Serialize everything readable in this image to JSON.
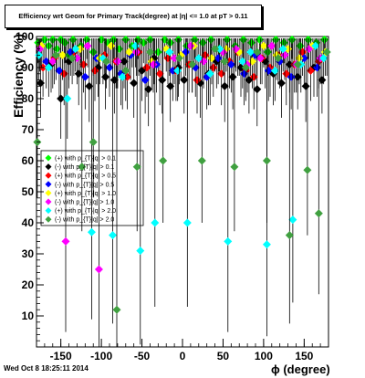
{
  "title": "Efficiency wrt Geom for Primary Track(degree) at |η| <= 1.0 at pT > 0.11",
  "footer": "Wed Oct  8 18:25:11 2014",
  "chart_data": {
    "type": "scatter",
    "xlabel": "ϕ (degree)",
    "ylabel": "Efficiency (%)",
    "xlim": [
      -180,
      180
    ],
    "ylim": [
      0,
      100
    ],
    "xticks": [
      -150,
      -100,
      -50,
      0,
      50,
      100,
      150
    ],
    "yticks": [
      0,
      10,
      20,
      30,
      40,
      50,
      60,
      70,
      80,
      90,
      100
    ],
    "grid": false,
    "legend_position": "center-left",
    "series": [
      {
        "name": "(+) with p_{T}|q| > 0.1",
        "color": "#00ff00",
        "x": [
          -178,
          -170,
          -165,
          -160,
          -155,
          -150,
          -145,
          -140,
          -135,
          -125,
          -118,
          -110,
          -100,
          -92,
          -85,
          -78,
          -70,
          -62,
          -55,
          -48,
          -40,
          -30,
          -22,
          -15,
          -5,
          5,
          15,
          25,
          35,
          45,
          55,
          65,
          75,
          85,
          95,
          105,
          115,
          125,
          135,
          145,
          155,
          165,
          175
        ],
        "y": [
          98,
          99,
          97,
          99,
          96,
          99,
          98,
          94,
          99,
          97,
          99,
          95,
          99,
          98,
          99,
          96,
          99,
          97,
          99,
          98,
          99,
          95,
          99,
          98,
          99,
          97,
          99,
          98,
          99,
          96,
          99,
          97,
          99,
          98,
          99,
          95,
          99,
          98,
          99,
          97,
          99,
          98,
          99
        ]
      },
      {
        "name": "(-) with p_{T}|q| > 0.1",
        "color": "#000000",
        "x": [
          -175,
          -162,
          -150,
          -140,
          -128,
          -115,
          -104,
          -95,
          -84,
          -72,
          -60,
          -50,
          -42,
          -35,
          -25,
          -15,
          -5,
          2,
          12,
          22,
          32,
          42,
          52,
          62,
          72,
          82,
          92,
          102,
          112,
          122,
          132,
          142,
          152,
          162,
          172
        ],
        "y": [
          85,
          91,
          80,
          92,
          88,
          84,
          90,
          87,
          86,
          92,
          85,
          89,
          83,
          93,
          86,
          84,
          90,
          86,
          91,
          85,
          88,
          92,
          84,
          87,
          90,
          86,
          83,
          92,
          88,
          85,
          91,
          87,
          84,
          90,
          86
        ]
      },
      {
        "name": "(+) with p_{T}|q| > 0.5",
        "color": "#ff0000",
        "x": [
          -172,
          -158,
          -146,
          -134,
          -122,
          -108,
          -96,
          -82,
          -68,
          -54,
          -44,
          -28,
          -18,
          -8,
          8,
          18,
          28,
          38,
          48,
          58,
          68,
          78,
          88,
          98,
          108,
          118,
          128,
          138,
          148,
          158,
          168
        ],
        "y": [
          90,
          93,
          88,
          95,
          91,
          89,
          94,
          92,
          87,
          95,
          90,
          88,
          93,
          89,
          91,
          86,
          94,
          90,
          88,
          92,
          95,
          89,
          87,
          93,
          90,
          94,
          88,
          91,
          95,
          89,
          92
        ]
      },
      {
        "name": "(-) with p_{T}|q| > 0.5",
        "color": "#0000ff",
        "x": [
          -168,
          -152,
          -138,
          -120,
          -106,
          -90,
          -76,
          -64,
          -46,
          -32,
          -12,
          4,
          16,
          30,
          44,
          60,
          76,
          90,
          106,
          120,
          134,
          150,
          166
        ],
        "y": [
          92,
          89,
          95,
          87,
          93,
          90,
          88,
          94,
          86,
          91,
          89,
          95,
          90,
          87,
          93,
          91,
          88,
          94,
          89,
          92,
          87,
          93,
          90
        ]
      },
      {
        "name": "(+) with p_{T}|q| > 1.0",
        "color": "#ffff00",
        "x": [
          -174,
          -148,
          -126,
          -102,
          -88,
          -66,
          -38,
          -20,
          -2,
          14,
          36,
          54,
          70,
          86,
          100,
          116,
          130,
          144,
          160,
          176
        ],
        "y": [
          97,
          94,
          96,
          93,
          97,
          95,
          92,
          96,
          94,
          97,
          93,
          96,
          95,
          92,
          97,
          94,
          96,
          93,
          97,
          95
        ]
      },
      {
        "name": "(-) with p_{T}|q| > 1.0",
        "color": "#ff00ff",
        "x": [
          -176,
          -160,
          -144,
          -130,
          -117,
          -103,
          -80,
          -57,
          -36,
          -10,
          10,
          26,
          50,
          66,
          80,
          96,
          110,
          126,
          140,
          156,
          170
        ],
        "y": [
          96,
          92,
          34,
          93,
          97,
          25,
          92,
          95,
          91,
          93,
          97,
          92,
          95,
          96,
          91,
          93,
          97,
          94,
          91,
          96,
          93
        ]
      },
      {
        "name": "(+) with p_{T}|q| > 2.0",
        "color": "#00ffff",
        "x": [
          -177,
          -165,
          -142,
          -132,
          -112,
          -98,
          -86,
          -74,
          -58,
          -52,
          -34,
          -16,
          -6,
          6,
          20,
          34,
          46,
          56,
          74,
          84,
          104,
          114,
          124,
          136,
          146,
          164,
          174
        ],
        "y": [
          94,
          90,
          80,
          96,
          37,
          93,
          36,
          87,
          97,
          31,
          40,
          95,
          89,
          40,
          93,
          88,
          96,
          34,
          92,
          95,
          33,
          89,
          96,
          41,
          91,
          97,
          93
        ]
      },
      {
        "name": "(-) with p_{T}|q| > 2.0",
        "color": "#40a040",
        "x": [
          -179,
          -156,
          -136,
          -124,
          -110,
          -94,
          -81,
          -70,
          -56,
          -40,
          -24,
          -4,
          12,
          24,
          40,
          52,
          64,
          78,
          92,
          104,
          118,
          132,
          142,
          154,
          168,
          178
        ],
        "y": [
          66,
          94,
          93,
          58,
          66,
          92,
          12,
          89,
          58,
          95,
          60,
          93,
          91,
          60,
          96,
          92,
          58,
          90,
          95,
          60,
          93,
          36,
          91,
          57,
          43,
          95
        ]
      }
    ]
  }
}
